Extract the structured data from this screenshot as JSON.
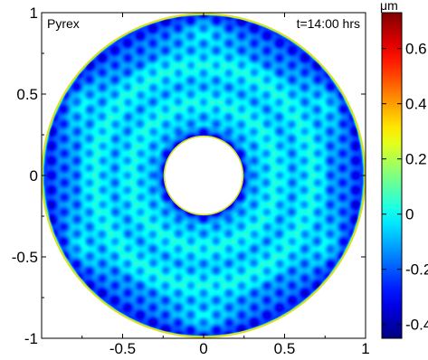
{
  "chart_data": {
    "type": "heatmap",
    "title": "",
    "xlabel": "",
    "ylabel": "",
    "xlim": [
      -1,
      1
    ],
    "ylim": [
      -1,
      1
    ],
    "grid": false,
    "annotations": {
      "material": "Pyrex",
      "time": "t=14:00 hrs"
    },
    "x_ticks": [
      "-0.5",
      "0",
      "0.5",
      "1"
    ],
    "x_tick_values": [
      -0.5,
      0,
      0.5,
      1
    ],
    "y_ticks": [
      "1",
      "0.5",
      "0",
      "-0.5",
      "-1"
    ],
    "y_tick_values": [
      1,
      0.5,
      0,
      -0.5,
      -1
    ],
    "colorbar": {
      "unit": "μm",
      "range": [
        -0.45,
        0.73
      ],
      "ticks": [
        "0.6",
        "0.4",
        "0.2",
        "0",
        "-0.2",
        "-0.4"
      ],
      "tick_values": [
        0.6,
        0.4,
        0.2,
        0,
        -0.2,
        -0.4
      ],
      "colormap": "jet"
    },
    "field": {
      "outer_radius": 1.0,
      "inner_radius": 0.24,
      "rim_value": 0.25,
      "mean_value": -0.05,
      "cell_amplitude": 0.12,
      "hexagonal_pattern": true,
      "edge_depression": -0.35
    },
    "colors": {
      "frame": "#000000",
      "background": "#ffffff",
      "rim": "#d9e020"
    }
  }
}
